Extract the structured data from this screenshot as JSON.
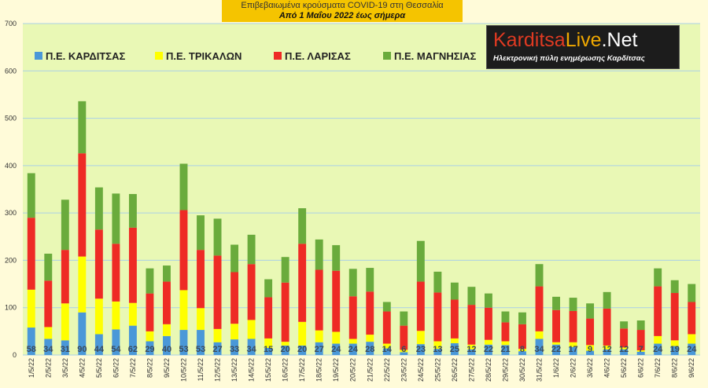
{
  "header": {
    "title": "Επιβεβαιωμένα κρούσματα COVID-19 στη Θεσσαλία",
    "subtitle": "Από 1 Μαΐου 2022 έως σήμερα"
  },
  "logo": {
    "brand_part1": "Karditsa",
    "brand_part2": "Live",
    "brand_part3": ".Net",
    "tagline": "Ηλεκτρονική πύλη ενημέρωσης Καρδίτσας",
    "color_part1": "#e03a22",
    "color_part2": "#f0a800",
    "color_part3": "#ffffff"
  },
  "chart_data": {
    "type": "bar",
    "stacked": true,
    "categories": [
      "1/5/22",
      "2/5/22",
      "3/5/22",
      "4/5/22",
      "5/5/22",
      "6/5/22",
      "7/5/22",
      "8/5/22",
      "9/5/22",
      "10/5/22",
      "11/5/22",
      "12/5/22",
      "13/5/22",
      "14/5/22",
      "15/5/22",
      "16/5/22",
      "17/5/22",
      "18/5/22",
      "19/5/22",
      "20/5/22",
      "21/5/22",
      "22/5/22",
      "23/5/22",
      "24/5/22",
      "25/5/22",
      "26/5/22",
      "27/5/22",
      "28/5/22",
      "29/5/22",
      "30/5/22",
      "31/5/22",
      "1/6/22",
      "2/6/22",
      "3/6/22",
      "4/6/22",
      "5/6/22",
      "6/6/22",
      "7/6/22",
      "8/6/22",
      "9/6/22"
    ],
    "series": [
      {
        "name": "Π.Ε. ΚΑΡΔΙΤΣΑΣ",
        "color": "#4a98d8",
        "values": [
          58,
          34,
          31,
          90,
          44,
          54,
          62,
          29,
          40,
          53,
          53,
          27,
          33,
          34,
          15,
          20,
          20,
          27,
          24,
          24,
          28,
          14,
          6,
          23,
          13,
          25,
          12,
          22,
          21,
          8,
          34,
          22,
          17,
          9,
          12,
          12,
          7,
          24,
          19,
          24
        ]
      },
      {
        "name": "Π.Ε. ΤΡΙΚΑΛΩΝ",
        "color": "#ffff00",
        "values": [
          80,
          25,
          78,
          118,
          75,
          59,
          48,
          21,
          25,
          84,
          46,
          28,
          33,
          40,
          20,
          8,
          50,
          25,
          25,
          10,
          15,
          10,
          5,
          28,
          16,
          10,
          10,
          10,
          8,
          5,
          16,
          5,
          10,
          12,
          8,
          4,
          3,
          16,
          12,
          20
        ]
      },
      {
        "name": "Π.Ε. ΛΑΡΙΣΑΣ",
        "color": "#ee2b25",
        "values": [
          152,
          98,
          113,
          218,
          146,
          122,
          159,
          80,
          90,
          169,
          123,
          155,
          109,
          118,
          87,
          125,
          165,
          128,
          129,
          90,
          91,
          68,
          51,
          104,
          103,
          82,
          84,
          68,
          40,
          52,
          95,
          68,
          66,
          56,
          78,
          40,
          43,
          105,
          100,
          68
        ]
      },
      {
        "name": "Π.Ε. ΜΑΓΝΗΣΙΑΣ",
        "color": "#6aab3c",
        "values": [
          94,
          57,
          106,
          110,
          89,
          106,
          71,
          53,
          34,
          98,
          73,
          78,
          58,
          62,
          38,
          54,
          75,
          64,
          54,
          58,
          50,
          20,
          30,
          86,
          44,
          36,
          38,
          30,
          23,
          25,
          47,
          28,
          28,
          32,
          35,
          15,
          20,
          38,
          27,
          38
        ]
      }
    ],
    "ylim": [
      0,
      700
    ],
    "yticks": [
      0,
      100,
      200,
      300,
      400,
      500,
      600,
      700
    ],
    "grid": true,
    "legend_position": "top-left",
    "data_labels_series": "Π.Ε. ΚΑΡΔΙΤΣΑΣ",
    "background": "#e9f8b5",
    "grid_color": "#aad0e6"
  }
}
